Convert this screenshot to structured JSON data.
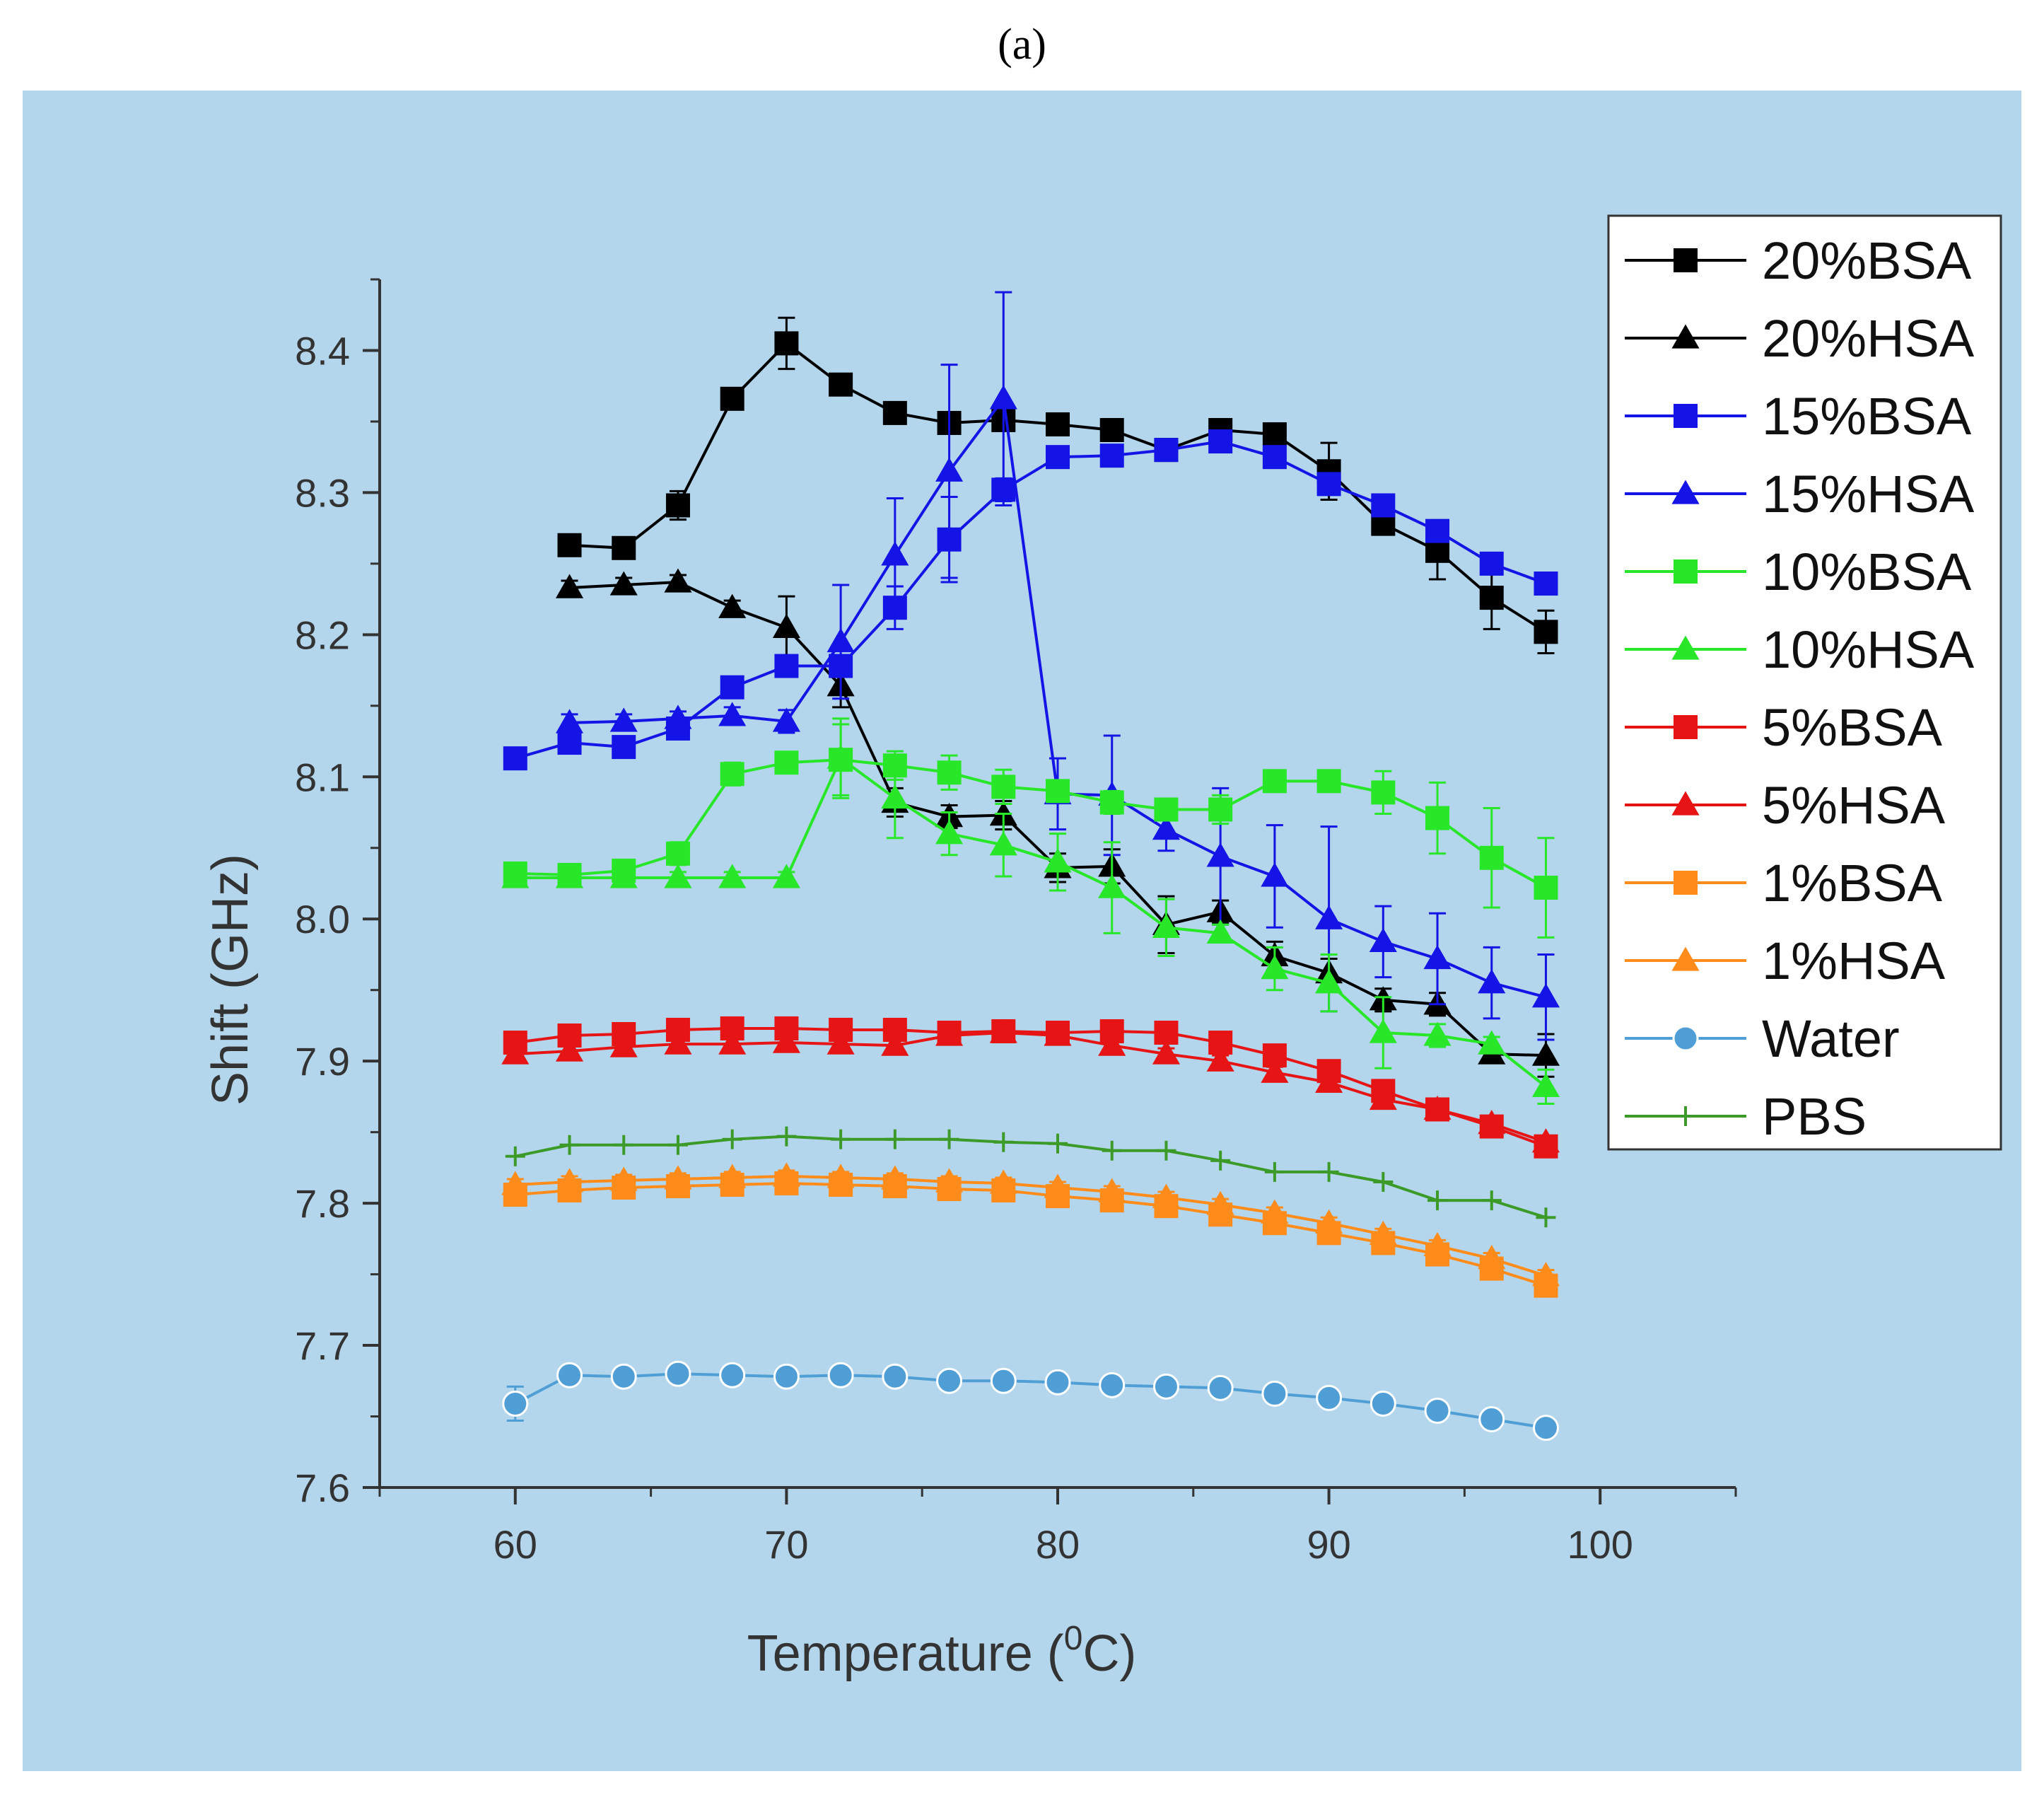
{
  "panel_label": "(a)",
  "colors": {
    "background": "#b3d6ec",
    "axis": "#333333"
  },
  "chart_data": {
    "type": "line",
    "xlabel": "Temperature (",
    "xlabel_super": "0",
    "xlabel_end": "C)",
    "ylabel": "Shift (GHz)",
    "xlim": [
      55,
      105
    ],
    "ylim": [
      7.6,
      8.45
    ],
    "xticks": [
      60,
      70,
      80,
      90,
      100
    ],
    "xtick_labels": [
      "60",
      "70",
      "80",
      "90",
      "100"
    ],
    "yticks": [
      7.6,
      7.7,
      7.8,
      7.9,
      8.0,
      8.1,
      8.2,
      8.3,
      8.4
    ],
    "ytick_labels": [
      "7.6",
      "7.7",
      "7.8",
      "7.9",
      "8.0",
      "8.1",
      "8.2",
      "8.3",
      "8.4"
    ],
    "legend_position": "top-right",
    "series": [
      {
        "name": "20%BSA",
        "color": "#000000",
        "marker": "square",
        "x": [
          62,
          64,
          66,
          68,
          70,
          72,
          74,
          76,
          78,
          80,
          82,
          84,
          86,
          88,
          90,
          92,
          94,
          96,
          98
        ],
        "y": [
          8.263,
          8.261,
          8.291,
          8.366,
          8.405,
          8.376,
          8.356,
          8.349,
          8.351,
          8.348,
          8.344,
          8.33,
          8.344,
          8.341,
          8.315,
          8.278,
          8.259,
          8.226,
          8.202
        ],
        "err": [
          0.006,
          0.006,
          0.01,
          0.006,
          0.018,
          0.005,
          0.005,
          0.005,
          0.005,
          0.004,
          0.006,
          0.005,
          0.005,
          0.006,
          0.02,
          0.006,
          0.02,
          0.022,
          0.015
        ]
      },
      {
        "name": "20%HSA",
        "color": "#000000",
        "marker": "triangle",
        "x": [
          62,
          64,
          66,
          68,
          70,
          72,
          74,
          76,
          78,
          80,
          82,
          84,
          86,
          88,
          90,
          92,
          94,
          96,
          98
        ],
        "y": [
          8.233,
          8.235,
          8.237,
          8.219,
          8.205,
          8.164,
          8.082,
          8.072,
          8.073,
          8.036,
          8.037,
          7.996,
          8.005,
          7.974,
          7.962,
          7.943,
          7.94,
          7.905,
          7.904
        ],
        "err": [
          0.005,
          0.005,
          0.005,
          0.005,
          0.022,
          0.015,
          0.01,
          0.008,
          0.01,
          0.01,
          0.012,
          0.02,
          0.008,
          0.01,
          0.01,
          0.008,
          0.008,
          0.005,
          0.015
        ]
      },
      {
        "name": "15%BSA",
        "color": "#1414e6",
        "marker": "square",
        "x": [
          60,
          62,
          64,
          66,
          68,
          70,
          72,
          74,
          76,
          78,
          80,
          82,
          84,
          86,
          88,
          90,
          92,
          94,
          96,
          98
        ],
        "y": [
          8.113,
          8.124,
          8.121,
          8.134,
          8.163,
          8.178,
          8.178,
          8.219,
          8.267,
          8.302,
          8.325,
          8.326,
          8.33,
          8.336,
          8.325,
          8.306,
          8.291,
          8.273,
          8.25,
          8.236
        ],
        "err": [
          0.005,
          0.005,
          0.005,
          0.005,
          0.006,
          0.006,
          0.006,
          0.015,
          0.03,
          0.008,
          0.005,
          0.005,
          0.005,
          0.005,
          0.005,
          0.005,
          0.005,
          0.006,
          0.006,
          0.005
        ]
      },
      {
        "name": "15%HSA",
        "color": "#1414e6",
        "marker": "triangle",
        "x": [
          62,
          64,
          66,
          68,
          70,
          72,
          74,
          76,
          78,
          80,
          82,
          84,
          86,
          88,
          90,
          92,
          94,
          96,
          98
        ],
        "y": [
          8.138,
          8.139,
          8.141,
          8.143,
          8.139,
          8.195,
          8.256,
          8.315,
          8.366,
          8.088,
          8.087,
          8.063,
          8.044,
          8.03,
          8.0,
          7.984,
          7.972,
          7.955,
          7.945
        ],
        "err": [
          0.006,
          0.005,
          0.005,
          0.006,
          0.008,
          0.04,
          0.04,
          0.075,
          0.075,
          0.025,
          0.042,
          0.015,
          0.048,
          0.036,
          0.065,
          0.025,
          0.032,
          0.025,
          0.03
        ]
      },
      {
        "name": "10%BSA",
        "color": "#28e628",
        "marker": "square",
        "x": [
          60,
          62,
          64,
          66,
          68,
          70,
          72,
          74,
          76,
          78,
          80,
          82,
          84,
          86,
          88,
          90,
          92,
          94,
          96,
          98
        ],
        "y": [
          8.032,
          8.031,
          8.034,
          8.046,
          8.102,
          8.11,
          8.112,
          8.108,
          8.103,
          8.093,
          8.09,
          8.082,
          8.077,
          8.077,
          8.097,
          8.097,
          8.089,
          8.071,
          8.043,
          8.022
        ],
        "err": [
          0.005,
          0.006,
          0.005,
          0.008,
          0.008,
          0.005,
          0.025,
          0.01,
          0.012,
          0.012,
          0.006,
          0.008,
          0.006,
          0.01,
          0.006,
          0.006,
          0.015,
          0.025,
          0.035,
          0.035
        ]
      },
      {
        "name": "10%HSA",
        "color": "#28e628",
        "marker": "triangle",
        "x": [
          60,
          62,
          64,
          66,
          68,
          70,
          72,
          74,
          76,
          78,
          80,
          82,
          84,
          86,
          88,
          90,
          92,
          94,
          96,
          98
        ],
        "y": [
          8.029,
          8.029,
          8.029,
          8.029,
          8.029,
          8.029,
          8.113,
          8.085,
          8.06,
          8.052,
          8.04,
          8.022,
          7.994,
          7.99,
          7.965,
          7.955,
          7.92,
          7.918,
          7.912,
          7.882
        ],
        "err": [
          0.004,
          0.004,
          0.004,
          0.004,
          0.004,
          0.004,
          0.028,
          0.028,
          0.015,
          0.022,
          0.02,
          0.032,
          0.02,
          0.006,
          0.015,
          0.02,
          0.025,
          0.008,
          0.005,
          0.012
        ]
      },
      {
        "name": "5%BSA",
        "color": "#e61414",
        "marker": "square",
        "x": [
          60,
          62,
          64,
          66,
          68,
          70,
          72,
          74,
          76,
          78,
          80,
          82,
          84,
          86,
          88,
          90,
          92,
          94,
          96,
          98
        ],
        "y": [
          7.913,
          7.918,
          7.919,
          7.922,
          7.923,
          7.923,
          7.922,
          7.922,
          7.92,
          7.921,
          7.92,
          7.921,
          7.92,
          7.913,
          7.904,
          7.893,
          7.879,
          7.866,
          7.854,
          7.84
        ],
        "err": [
          0.004,
          0.004,
          0.004,
          0.004,
          0.004,
          0.004,
          0.004,
          0.004,
          0.004,
          0.004,
          0.004,
          0.004,
          0.004,
          0.004,
          0.004,
          0.004,
          0.004,
          0.004,
          0.004,
          0.004
        ]
      },
      {
        "name": "5%HSA",
        "color": "#e61414",
        "marker": "triangle",
        "x": [
          60,
          62,
          64,
          66,
          68,
          70,
          72,
          74,
          76,
          78,
          80,
          82,
          84,
          86,
          88,
          90,
          92,
          94,
          96,
          98
        ],
        "y": [
          7.905,
          7.907,
          7.91,
          7.912,
          7.912,
          7.913,
          7.912,
          7.911,
          7.918,
          7.92,
          7.918,
          7.911,
          7.905,
          7.9,
          7.892,
          7.885,
          7.873,
          7.866,
          7.856,
          7.843
        ],
        "err": [
          0.004,
          0.004,
          0.004,
          0.004,
          0.004,
          0.004,
          0.004,
          0.004,
          0.004,
          0.004,
          0.004,
          0.004,
          0.004,
          0.004,
          0.004,
          0.004,
          0.004,
          0.004,
          0.004,
          0.004
        ]
      },
      {
        "name": "1%BSA",
        "color": "#ff8c1a",
        "marker": "square",
        "x": [
          60,
          62,
          64,
          66,
          68,
          70,
          72,
          74,
          76,
          78,
          80,
          82,
          84,
          86,
          88,
          90,
          92,
          94,
          96,
          98
        ],
        "y": [
          7.806,
          7.809,
          7.811,
          7.812,
          7.813,
          7.814,
          7.813,
          7.812,
          7.81,
          7.809,
          7.805,
          7.802,
          7.798,
          7.792,
          7.786,
          7.779,
          7.772,
          7.764,
          7.754,
          7.742
        ],
        "err": [
          0.004,
          0.004,
          0.004,
          0.004,
          0.004,
          0.004,
          0.004,
          0.004,
          0.004,
          0.004,
          0.004,
          0.004,
          0.004,
          0.004,
          0.004,
          0.004,
          0.004,
          0.004,
          0.004,
          0.004
        ]
      },
      {
        "name": "1%HSA",
        "color": "#ff8c1a",
        "marker": "triangle",
        "x": [
          60,
          62,
          64,
          66,
          68,
          70,
          72,
          74,
          76,
          78,
          80,
          82,
          84,
          86,
          88,
          90,
          92,
          94,
          96,
          98
        ],
        "y": [
          7.813,
          7.815,
          7.816,
          7.817,
          7.818,
          7.819,
          7.818,
          7.817,
          7.815,
          7.814,
          7.811,
          7.808,
          7.804,
          7.799,
          7.793,
          7.786,
          7.778,
          7.77,
          7.761,
          7.749
        ],
        "err": [
          0.004,
          0.004,
          0.004,
          0.004,
          0.004,
          0.004,
          0.004,
          0.004,
          0.004,
          0.004,
          0.004,
          0.004,
          0.004,
          0.004,
          0.004,
          0.004,
          0.004,
          0.004,
          0.004,
          0.004
        ]
      },
      {
        "name": "Water",
        "color": "#4f9fd6",
        "marker": "circle",
        "x": [
          60,
          62,
          64,
          66,
          68,
          70,
          72,
          74,
          76,
          78,
          80,
          82,
          84,
          86,
          88,
          90,
          92,
          94,
          96,
          98
        ],
        "y": [
          7.659,
          7.679,
          7.678,
          7.68,
          7.679,
          7.678,
          7.679,
          7.678,
          7.675,
          7.675,
          7.674,
          7.672,
          7.671,
          7.67,
          7.666,
          7.663,
          7.659,
          7.654,
          7.648,
          7.642
        ],
        "err": [
          0.012,
          0.004,
          0.003,
          0.003,
          0.003,
          0.003,
          0.003,
          0.003,
          0.003,
          0.003,
          0.003,
          0.003,
          0.003,
          0.003,
          0.003,
          0.003,
          0.003,
          0.003,
          0.003,
          0.003
        ]
      },
      {
        "name": "PBS",
        "color": "#3c9a28",
        "marker": "plus",
        "x": [
          60,
          62,
          64,
          66,
          68,
          70,
          72,
          74,
          76,
          78,
          80,
          82,
          84,
          86,
          88,
          90,
          92,
          94,
          96,
          98
        ],
        "y": [
          7.833,
          7.841,
          7.841,
          7.841,
          7.845,
          7.847,
          7.845,
          7.845,
          7.845,
          7.843,
          7.842,
          7.837,
          7.837,
          7.83,
          7.822,
          7.822,
          7.815,
          7.802,
          7.802,
          7.79
        ],
        "err": [
          0,
          0,
          0,
          0,
          0,
          0,
          0,
          0,
          0,
          0,
          0,
          0,
          0,
          0,
          0,
          0,
          0,
          0,
          0,
          0
        ]
      }
    ]
  }
}
